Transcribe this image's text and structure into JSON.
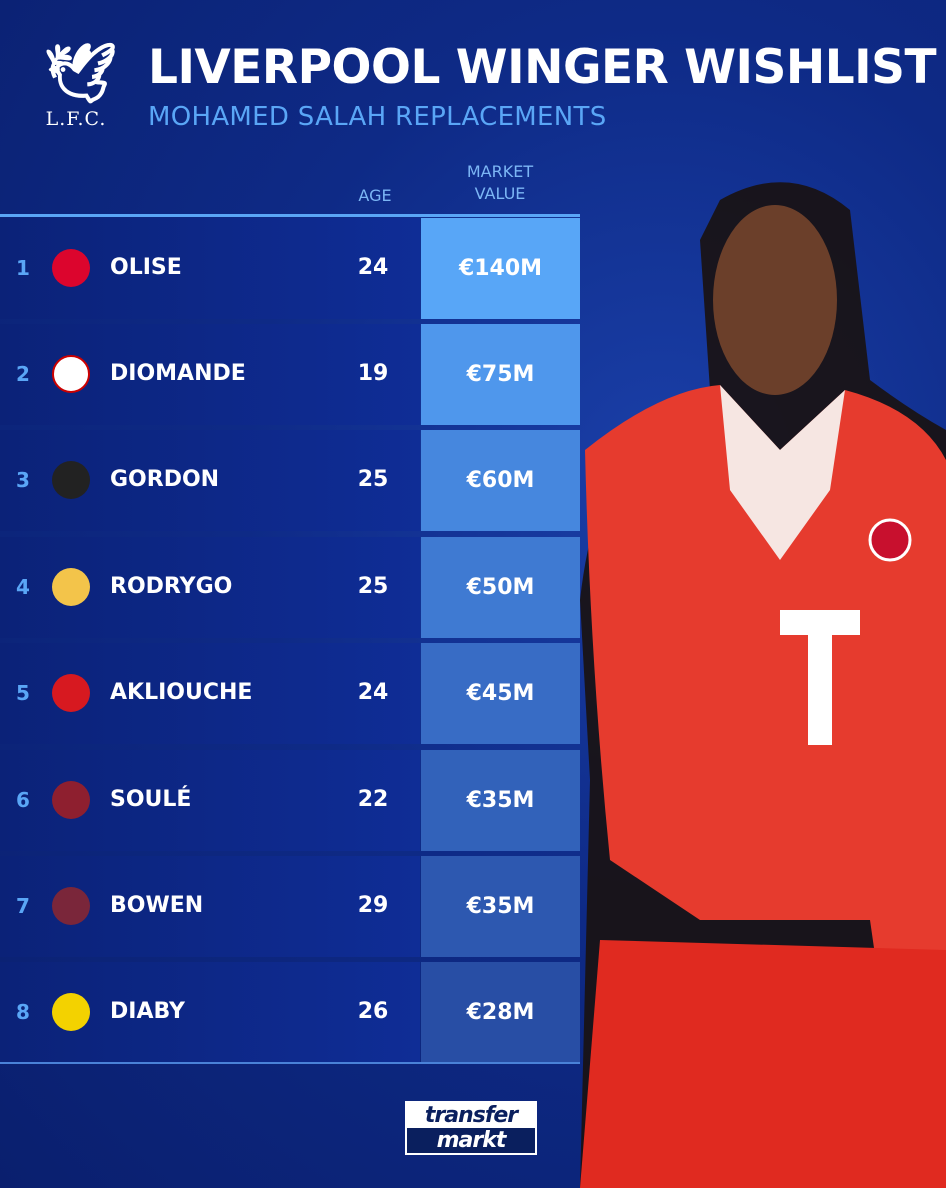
{
  "header": {
    "crest_text": "L.F.C.",
    "title": "LIVERPOOL WINGER WISHLIST",
    "subtitle": "MOHAMED SALAH REPLACEMENTS"
  },
  "columns": {
    "age": "AGE",
    "market_value_line1": "MARKET",
    "market_value_line2": "VALUE"
  },
  "rows": [
    {
      "rank": "1",
      "club_icon": "bayern-munich-crest",
      "name": "OLISE",
      "age": "24",
      "value": "€140M",
      "color": "#58a6f7"
    },
    {
      "rank": "2",
      "club_icon": "rb-leipzig-crest",
      "name": "DIOMANDE",
      "age": "19",
      "value": "€75M",
      "color": "#4f97ec"
    },
    {
      "rank": "3",
      "club_icon": "newcastle-crest",
      "name": "GORDON",
      "age": "25",
      "value": "€60M",
      "color": "#4687de"
    },
    {
      "rank": "4",
      "club_icon": "real-madrid-crest",
      "name": "RODRYGO",
      "age": "25",
      "value": "€50M",
      "color": "#3f7ad2"
    },
    {
      "rank": "5",
      "club_icon": "monaco-crest",
      "name": "AKLIOUCHE",
      "age": "24",
      "value": "€45M",
      "color": "#386cc5"
    },
    {
      "rank": "6",
      "club_icon": "as-roma-crest",
      "name": "SOULÉ",
      "age": "22",
      "value": "€35M",
      "color": "#3262ba"
    },
    {
      "rank": "7",
      "club_icon": "west-ham-crest",
      "name": "BOWEN",
      "age": "29",
      "value": "€35M",
      "color": "#2d58b0"
    },
    {
      "rank": "8",
      "club_icon": "al-ittihad-crest",
      "name": "DIABY",
      "age": "26",
      "value": "€28M",
      "color": "#284ea5"
    }
  ],
  "footer": {
    "logo_line1": "transfer",
    "logo_line2": "markt"
  }
}
